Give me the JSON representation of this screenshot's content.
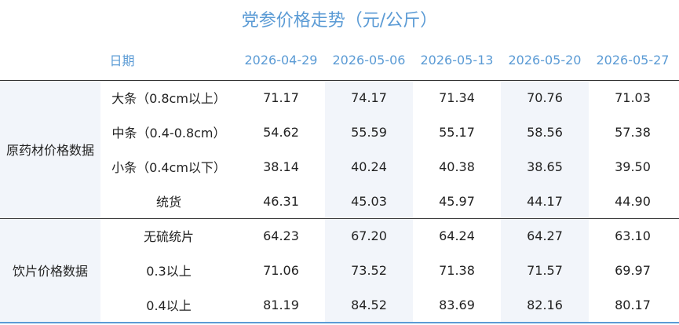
{
  "header": {
    "title": "党参价格走势（元/公斤）",
    "date_label": "日期",
    "dates": [
      "2026-04-29",
      "2026-05-06",
      "2026-05-13",
      "2026-05-20",
      "2026-05-27"
    ]
  },
  "table": {
    "groups": [
      {
        "name": "原药材价格数据",
        "rows": [
          {
            "label": "大条（0.8cm以上）",
            "values": [
              "71.17",
              "74.17",
              "71.34",
              "70.76",
              "71.03"
            ]
          },
          {
            "label": "中条（0.4-0.8cm）",
            "values": [
              "54.62",
              "55.59",
              "55.17",
              "58.56",
              "57.38"
            ]
          },
          {
            "label": "小条（0.4cm以下）",
            "values": [
              "38.14",
              "40.24",
              "40.38",
              "38.65",
              "39.50"
            ]
          },
          {
            "label": "统货",
            "values": [
              "46.31",
              "45.03",
              "45.97",
              "44.17",
              "44.90"
            ]
          }
        ]
      },
      {
        "name": "饮片价格数据",
        "rows": [
          {
            "label": "无硫统片",
            "values": [
              "64.23",
              "67.20",
              "64.24",
              "64.27",
              "63.10"
            ]
          },
          {
            "label": "0.3以上",
            "values": [
              "71.06",
              "73.52",
              "71.38",
              "71.57",
              "69.97"
            ]
          },
          {
            "label": "0.4以上",
            "values": [
              "81.19",
              "84.52",
              "83.69",
              "82.16",
              "80.17"
            ]
          }
        ]
      }
    ]
  }
}
